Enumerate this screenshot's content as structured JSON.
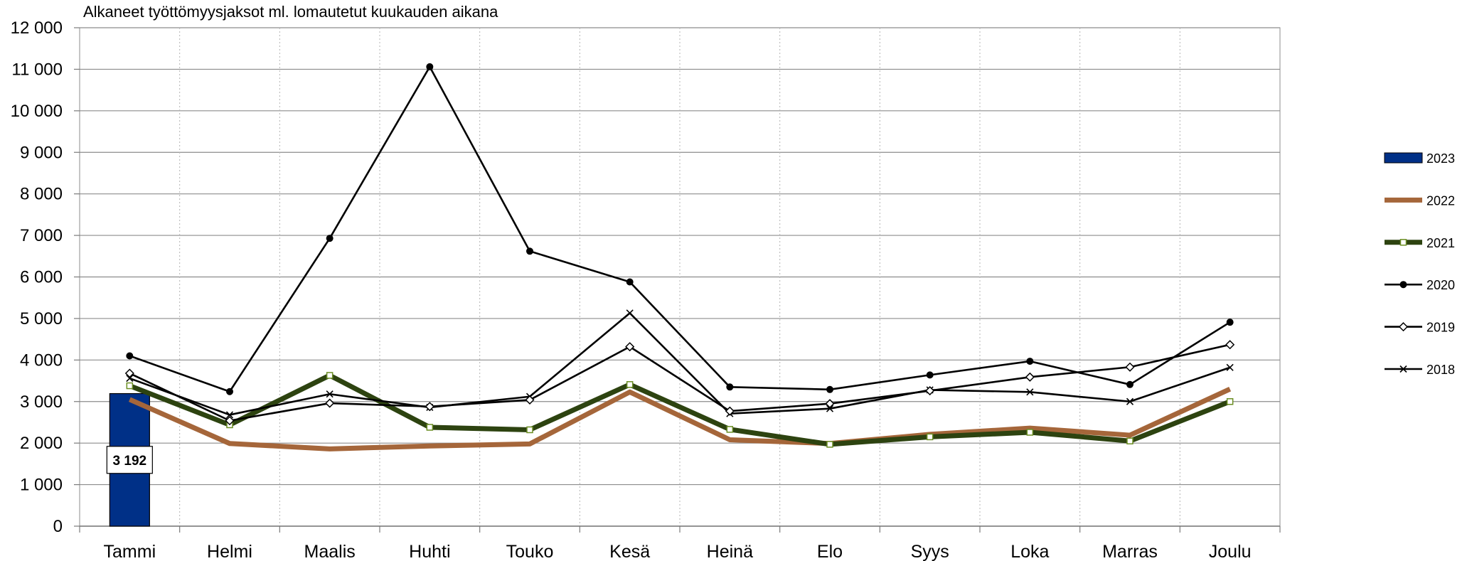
{
  "chart_data": {
    "type": "bar+line",
    "title": "Alkaneet työttömyysjaksot ml. lomautetut kuukauden aikana",
    "categories": [
      "Tammi",
      "Helmi",
      "Maalis",
      "Huhti",
      "Touko",
      "Kesä",
      "Heinä",
      "Elo",
      "Syys",
      "Loka",
      "Marras",
      "Joulu"
    ],
    "ylim": [
      0,
      12000
    ],
    "yticks": [
      0,
      1000,
      2000,
      3000,
      4000,
      5000,
      6000,
      7000,
      8000,
      9000,
      10000,
      11000,
      12000
    ],
    "ytick_labels": [
      "0",
      "1 000",
      "2 000",
      "3 000",
      "4 000",
      "5 000",
      "6 000",
      "7 000",
      "8 000",
      "9 000",
      "10 000",
      "11 000",
      "12 000"
    ],
    "grid": true,
    "legend_position": "right",
    "series": [
      {
        "name": "2023",
        "kind": "bar",
        "color": "#003087",
        "values": [
          3192,
          null,
          null,
          null,
          null,
          null,
          null,
          null,
          null,
          null,
          null,
          null
        ],
        "data_label": "3 192"
      },
      {
        "name": "2022",
        "kind": "line",
        "color": "#A5663A",
        "marker": "none",
        "values": [
          3050,
          1990,
          1860,
          1930,
          1980,
          3230,
          2080,
          1990,
          2210,
          2360,
          2190,
          3300
        ]
      },
      {
        "name": "2021",
        "kind": "line",
        "color": "#2D4310",
        "marker": "square-open",
        "values": [
          3380,
          2440,
          3630,
          2380,
          2320,
          3410,
          2330,
          1970,
          2150,
          2260,
          2050,
          3000
        ]
      },
      {
        "name": "2020",
        "kind": "line",
        "color": "#000000",
        "marker": "dot",
        "values": [
          4100,
          3240,
          6930,
          11060,
          6620,
          5880,
          3350,
          3290,
          3640,
          3970,
          3410,
          4910
        ]
      },
      {
        "name": "2019",
        "kind": "line",
        "color": "#000000",
        "marker": "diamond-open",
        "values": [
          3680,
          2540,
          2960,
          2880,
          3040,
          4320,
          2770,
          2950,
          3260,
          3590,
          3830,
          4370
        ]
      },
      {
        "name": "2018",
        "kind": "line",
        "color": "#000000",
        "marker": "x",
        "values": [
          3560,
          2680,
          3180,
          2860,
          3120,
          5130,
          2710,
          2830,
          3280,
          3230,
          3000,
          3820
        ]
      }
    ]
  }
}
